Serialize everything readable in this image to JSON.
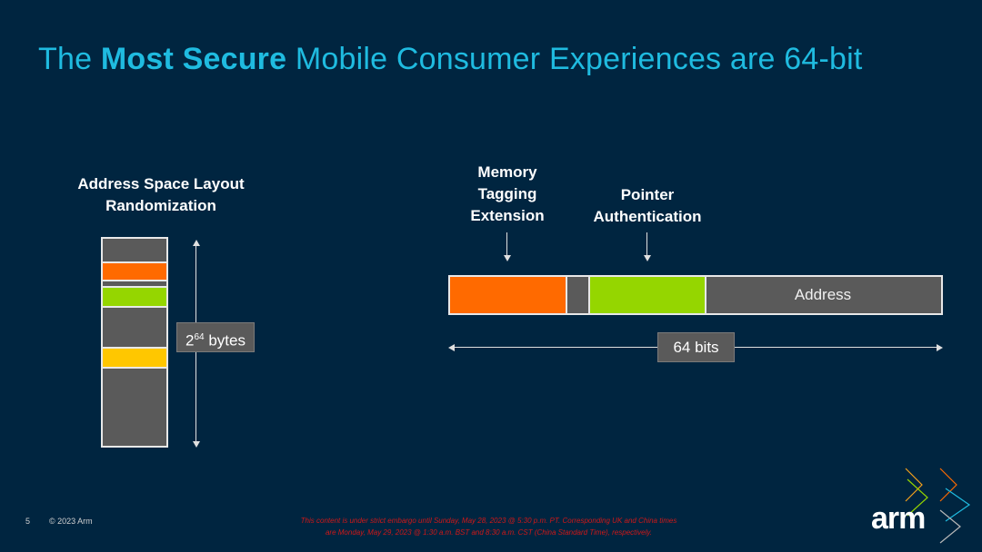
{
  "title": {
    "prefix": "The ",
    "bold": "Most Secure",
    "suffix": " Mobile Consumer Experiences are 64-bit"
  },
  "aslr": {
    "label": "Address Space Layout Randomization",
    "size_base": "2",
    "size_exp": "64",
    "size_unit": " bytes"
  },
  "pointer": {
    "mte_label": "Memory Tagging Extension",
    "pac_label": "Pointer Authentication",
    "address_label": "Address",
    "width_label": "64 bits"
  },
  "footer": {
    "page_number": "5",
    "copyright": "© 2023 Arm",
    "embargo_line1": "This content is under strict embargo until Sunday, May 28, 2023 @ 5:30 p.m. PT. Corresponding UK and China times",
    "embargo_line2": "are Monday, May 29, 2023 @ 1:30 a.m. BST and 8:30 a.m. CST (China Standard Time), respectively.",
    "logo_text": "arm"
  },
  "colors": {
    "background": "#002540",
    "title": "#1fbbe0",
    "orange": "#ff6a00",
    "green": "#95d600",
    "yellow": "#ffc700",
    "gray": "#5a5a5a"
  }
}
